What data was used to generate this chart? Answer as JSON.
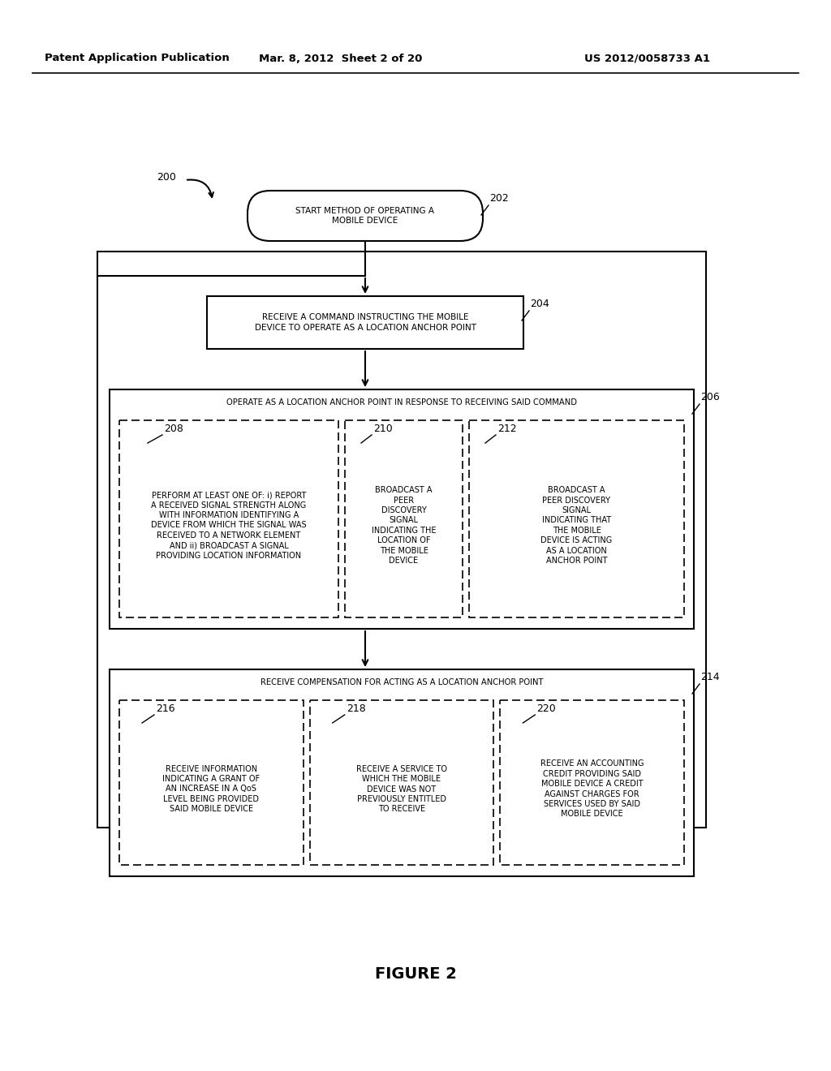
{
  "bg_color": "#ffffff",
  "header_left": "Patent Application Publication",
  "header_mid": "Mar. 8, 2012  Sheet 2 of 20",
  "header_right": "US 2012/0058733 A1",
  "figure_label": "FIGURE 2",
  "lbl200": "200",
  "lbl202": "202",
  "lbl204": "204",
  "lbl206": "206",
  "lbl208": "208",
  "lbl210": "210",
  "lbl212": "212",
  "lbl214": "214",
  "lbl216": "216",
  "lbl218": "218",
  "lbl220": "220",
  "txt202": "START METHOD OF OPERATING A\nMOBILE DEVICE",
  "txt204": "RECEIVE A COMMAND INSTRUCTING THE MOBILE\nDEVICE TO OPERATE AS A LOCATION ANCHOR POINT",
  "txt206": "OPERATE AS A LOCATION ANCHOR POINT IN RESPONSE TO RECEIVING SAID COMMAND",
  "txt208": "PERFORM AT LEAST ONE OF: i) REPORT\nA RECEIVED SIGNAL STRENGTH ALONG\nWITH INFORMATION IDENTIFYING A\nDEVICE FROM WHICH THE SIGNAL WAS\nRECEIVED TO A NETWORK ELEMENT\nAND ii) BROADCAST A SIGNAL\nPROVIDING LOCATION INFORMATION",
  "txt210": "BROADCAST A\nPEER\nDISCOVERY\nSIGNAL\nINDICATING THE\nLOCATION OF\nTHE MOBILE\nDEVICE",
  "txt212": "BROADCAST A\nPEER DISCOVERY\nSIGNAL\nINDICATING THAT\nTHE MOBILE\nDEVICE IS ACTING\nAS A LOCATION\nANCHOR POINT",
  "txt214": "RECEIVE COMPENSATION FOR ACTING AS A LOCATION ANCHOR POINT",
  "txt216": "RECEIVE INFORMATION\nINDICATING A GRANT OF\nAN INCREASE IN A QoS\nLEVEL BEING PROVIDED\nSAID MOBILE DEVICE",
  "txt218": "RECEIVE A SERVICE TO\nWHICH THE MOBILE\nDEVICE WAS NOT\nPREVIOUSLY ENTITLED\nTO RECEIVE",
  "txt220": "RECEIVE AN ACCOUNTING\nCREDIT PROVIDING SAID\nMOBILE DEVICE A CREDIT\nAGAINST CHARGES FOR\nSERVICES USED BY SAID\nMOBILE DEVICE"
}
